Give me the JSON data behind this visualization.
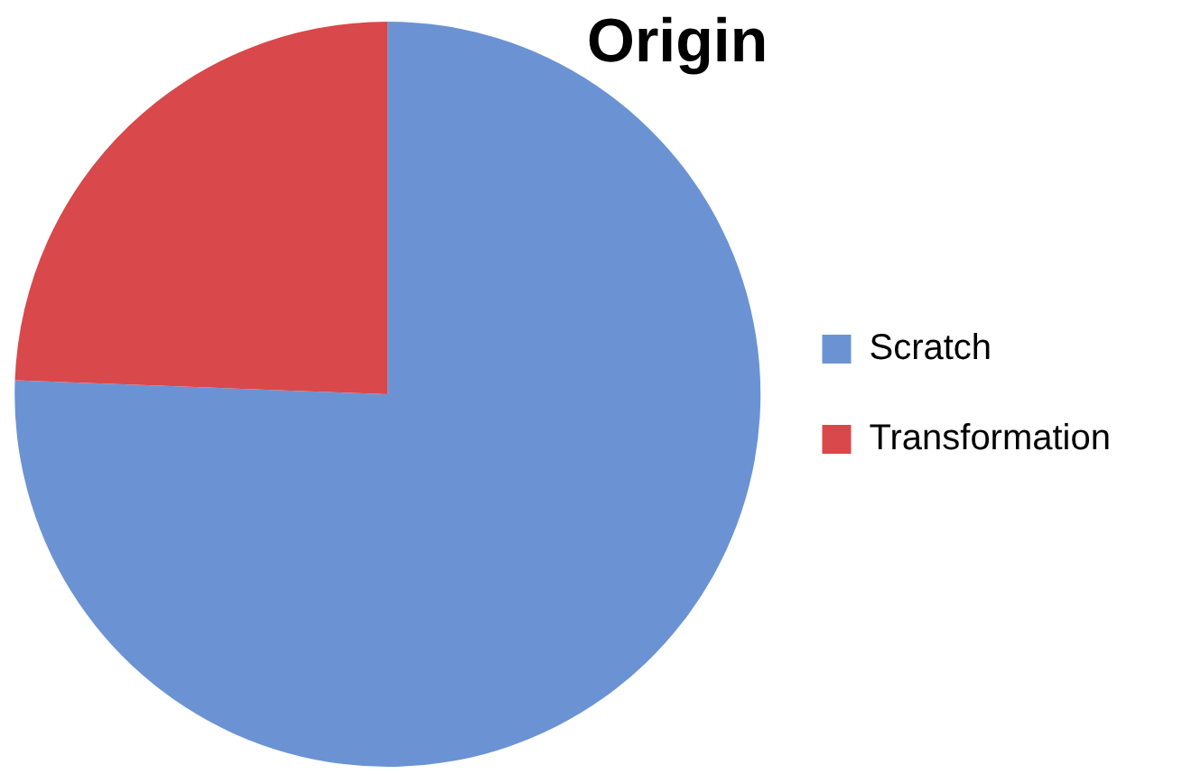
{
  "chart_data": {
    "type": "pie",
    "title": "Origin",
    "categories": [
      "Scratch",
      "Transformation"
    ],
    "values": [
      75.6,
      24.4
    ],
    "colors": [
      "#6b93d3",
      "#d9484b"
    ],
    "legend": "right"
  }
}
